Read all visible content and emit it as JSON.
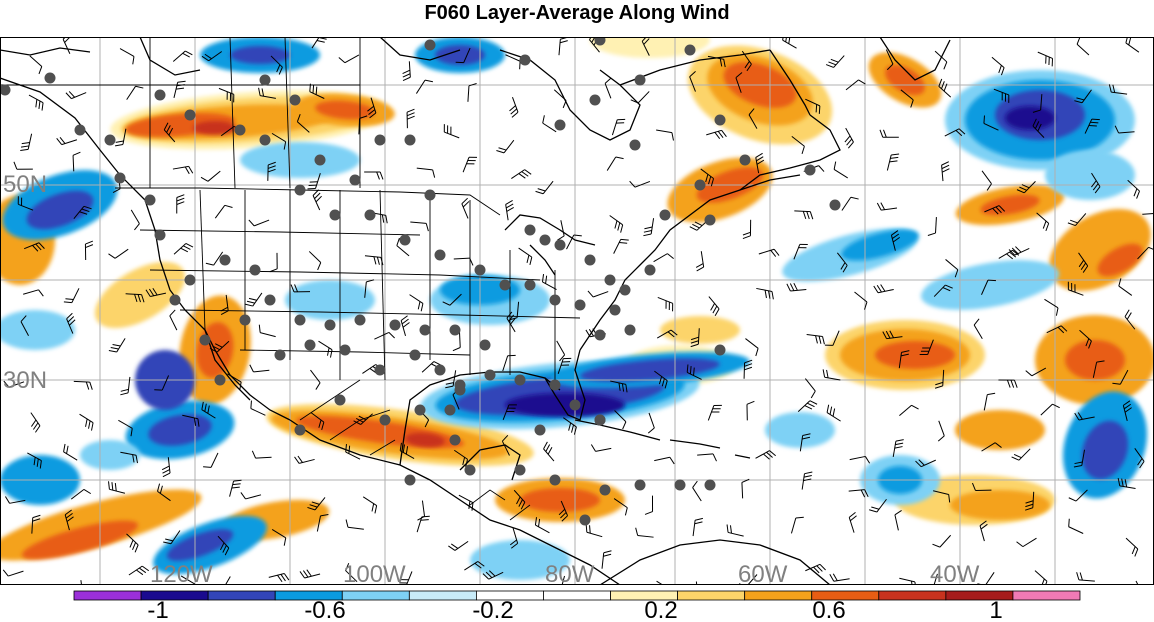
{
  "title": "F060 Layer-Average Along Wind",
  "map": {
    "region": "North America and North Atlantic",
    "lat_labels": [
      "50N",
      "30N"
    ],
    "lon_labels": [
      "120W",
      "100W",
      "80W",
      "60W",
      "40W"
    ],
    "label_color": "#808080",
    "gridline_color": "#b0b0b0",
    "station_color": "#505050",
    "land_outline_color": "#000000"
  },
  "colorbar": {
    "tick_labels": [
      "-1",
      "-0.6",
      "-0.2",
      "0.2",
      "0.6",
      "1"
    ],
    "colors": [
      "#9b30d9",
      "#1a0a8f",
      "#3245b8",
      "#0a9be0",
      "#7ed1f5",
      "#c8ebf8",
      "#ffffff",
      "#ffffff",
      "#fff1b3",
      "#fcd46a",
      "#f4a21b",
      "#e85d13",
      "#c8321e",
      "#a61c1c",
      "#f07ab5"
    ]
  },
  "colors": {
    "background": "#ffffff",
    "dark_blue": "#1a0a8f",
    "med_blue": "#3245b8",
    "cyan": "#0a9be0",
    "light_blue": "#7ed1f5",
    "pale_yellow": "#fff1b3",
    "yellow": "#fcd46a",
    "orange": "#f4a21b",
    "red_orange": "#e85d13",
    "red": "#c8321e"
  }
}
